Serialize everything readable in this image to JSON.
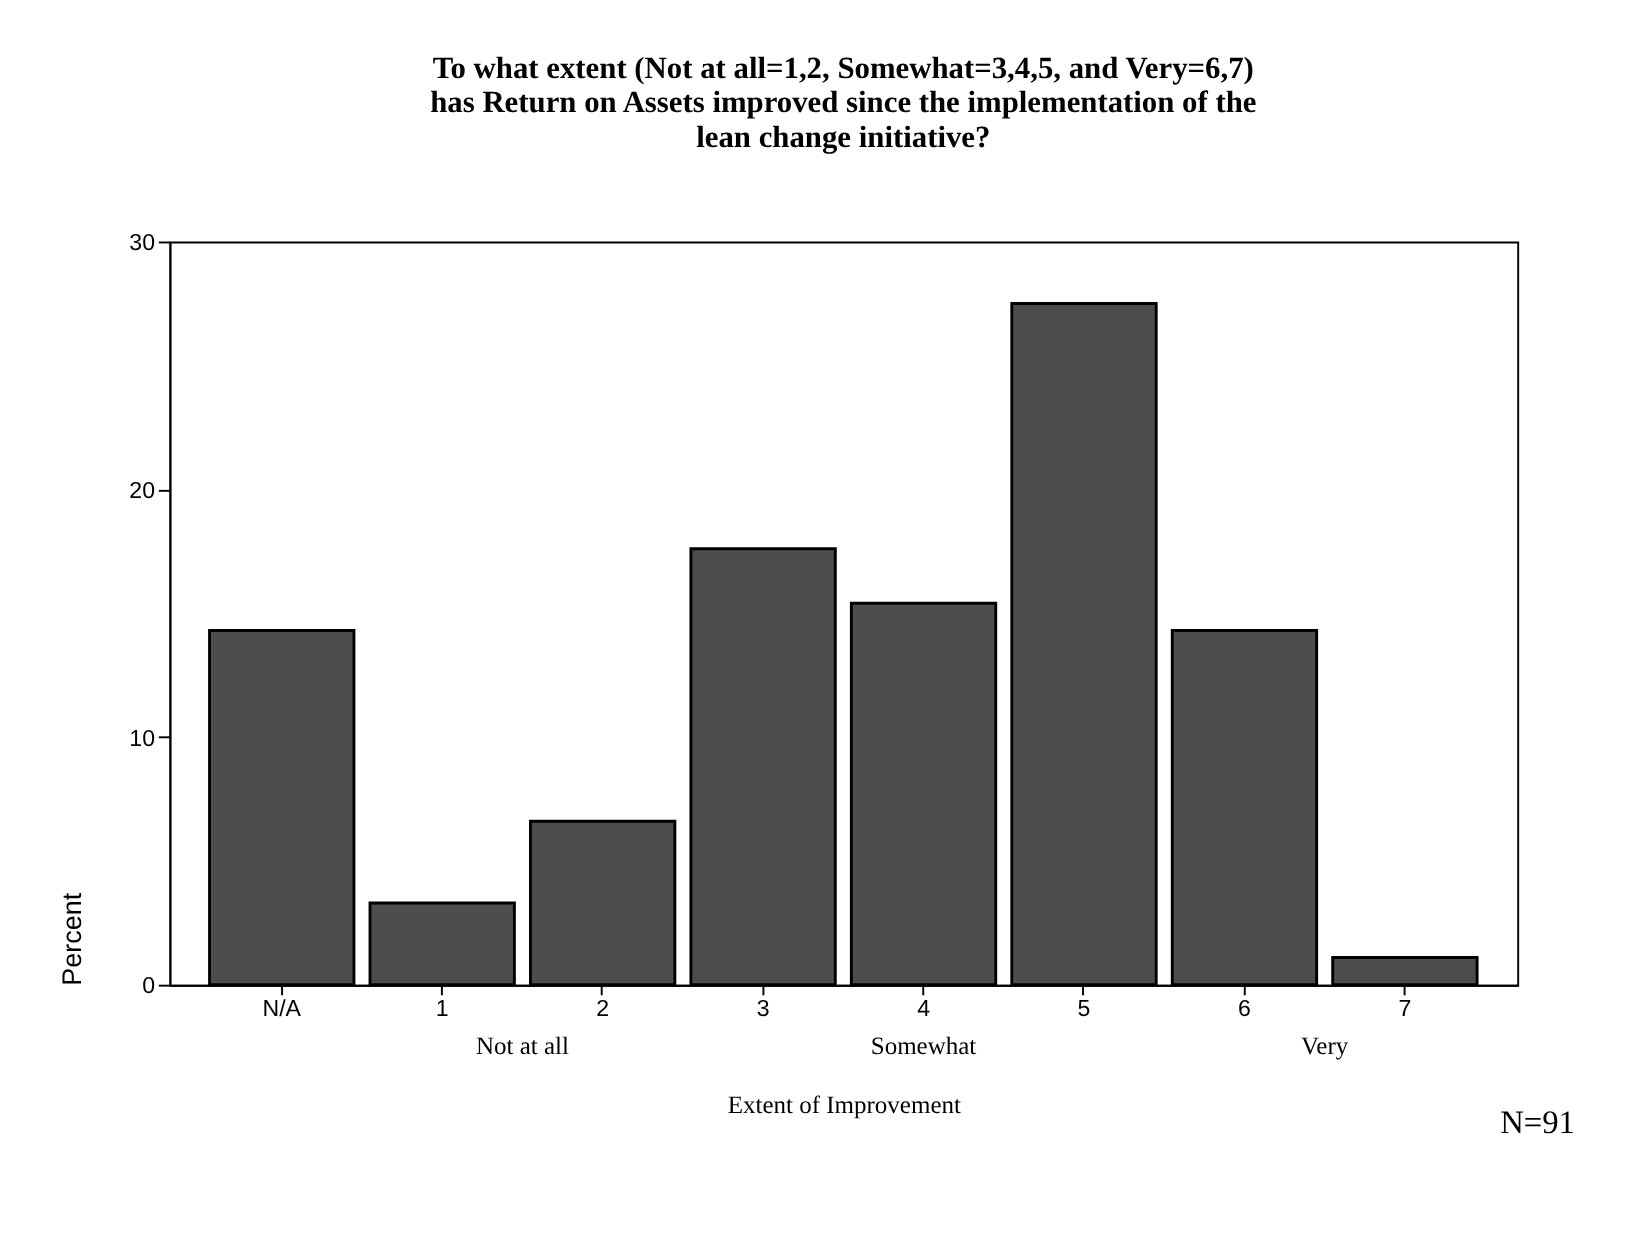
{
  "chart_data": {
    "type": "bar",
    "title": [
      "To what extent (Not at all=1,2, Somewhat=3,4,5, and Very=6,7)",
      "has Return on Assets improved since the implementation of the",
      "lean change initiative?"
    ],
    "categories": [
      "N/A",
      "1",
      "2",
      "3",
      "4",
      "5",
      "6",
      "7"
    ],
    "values": [
      14.3,
      3.3,
      6.6,
      17.6,
      15.4,
      27.5,
      14.3,
      1.1
    ],
    "color": "#4d4d4d",
    "xlabel": "Extent of Improvement",
    "ylabel": "Percent",
    "ylim": [
      0,
      30
    ],
    "yticks": [
      0,
      10,
      20,
      30
    ],
    "grid": false,
    "annotations": [
      "Not at all",
      "Somewhat",
      "Very",
      "N=91"
    ]
  }
}
